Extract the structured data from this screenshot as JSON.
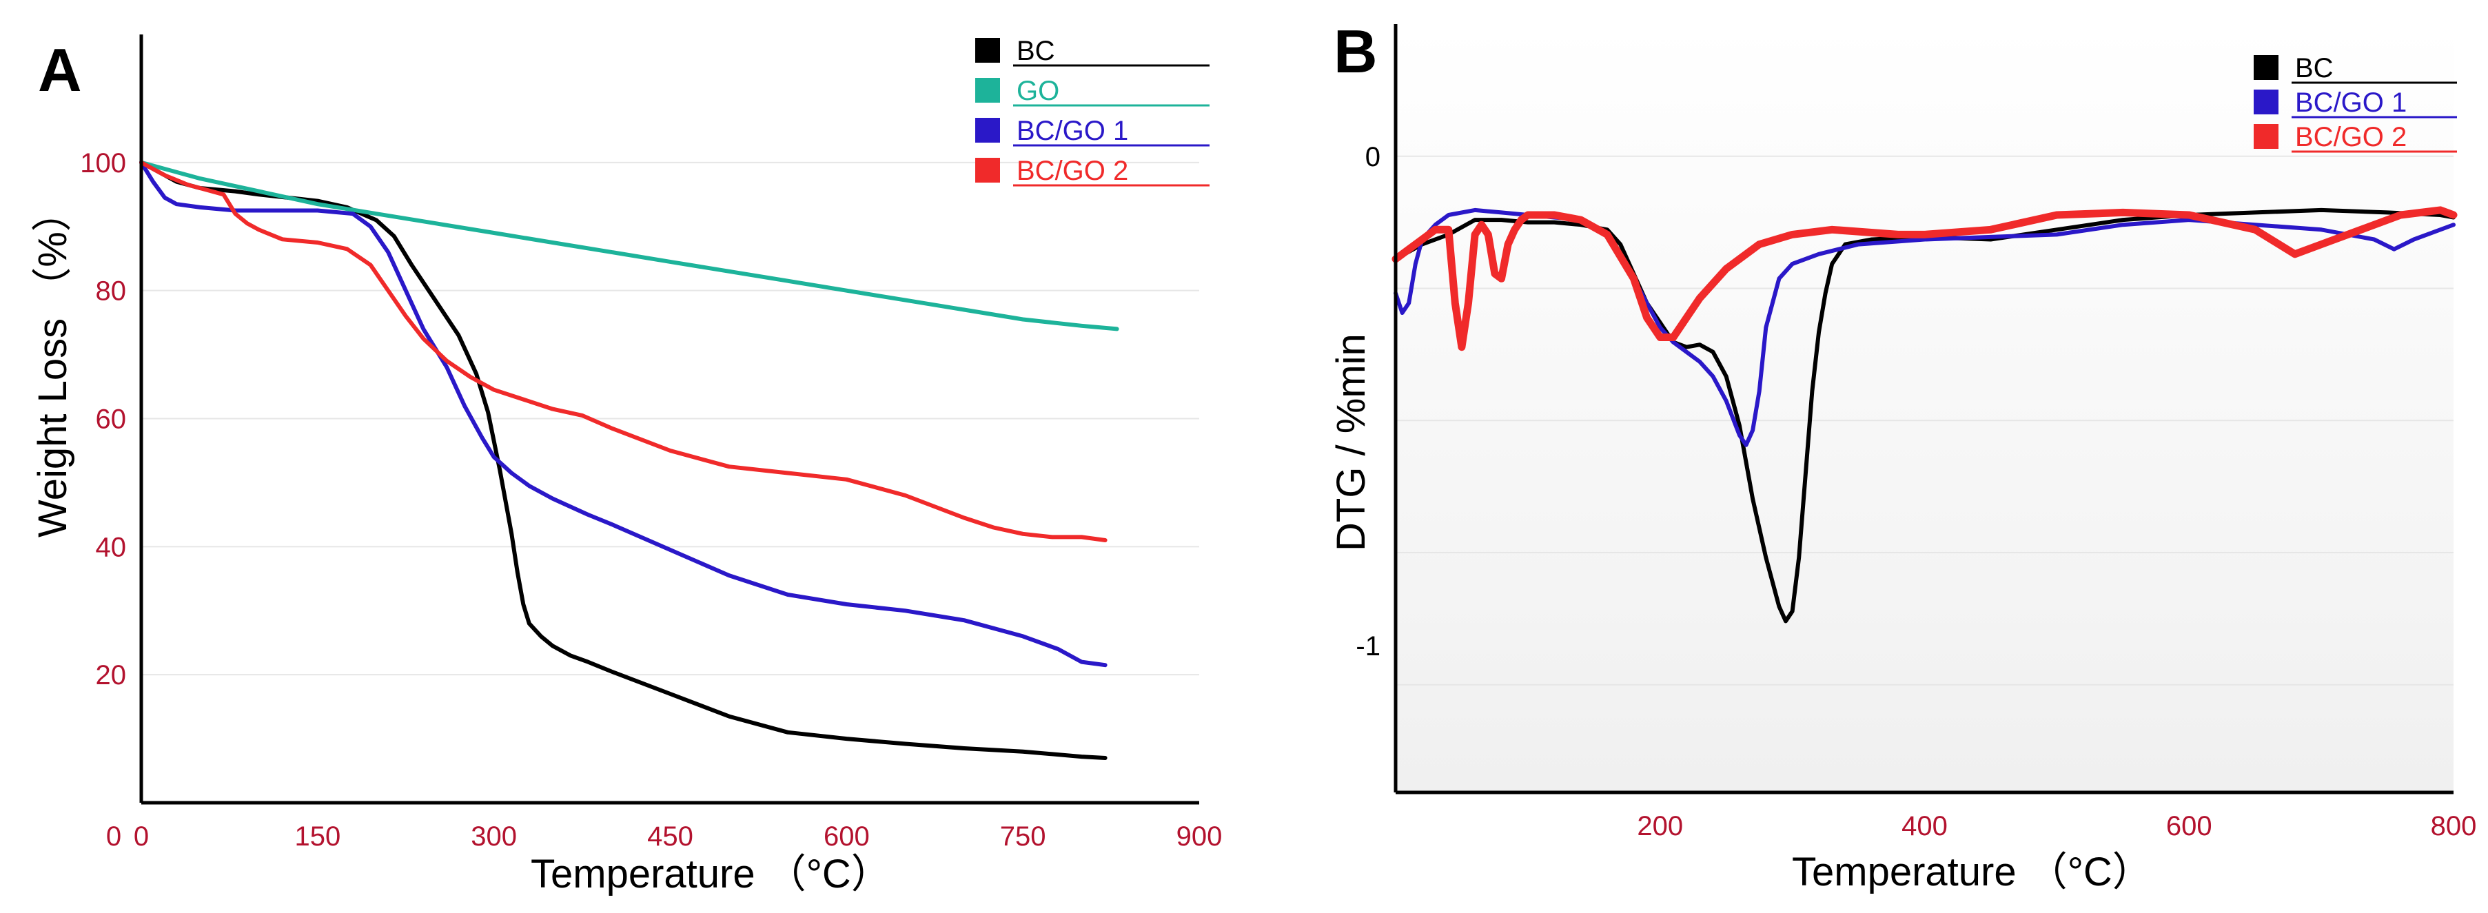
{
  "chart_data": [
    {
      "panel": "A",
      "type": "line",
      "xlabel": "Temperature （°C）",
      "ylabel": "Weight Loss （%）",
      "xlim": [
        0,
        900
      ],
      "ylim": [
        0,
        120
      ],
      "xticks": [
        0,
        150,
        300,
        450,
        600,
        750,
        900
      ],
      "yticks": [
        20,
        40,
        60,
        80,
        100
      ],
      "grid": true,
      "legend_position": "top-right",
      "series": [
        {
          "name": "BC",
          "color": "#000000",
          "x": [
            0,
            10,
            20,
            30,
            50,
            80,
            100,
            125,
            150,
            175,
            200,
            215,
            230,
            250,
            270,
            285,
            295,
            305,
            315,
            320,
            325,
            330,
            340,
            350,
            365,
            380,
            400,
            450,
            500,
            550,
            600,
            650,
            700,
            750,
            800,
            820
          ],
          "y": [
            100,
            99,
            98,
            97,
            96,
            95.5,
            95,
            94.5,
            94,
            93,
            91,
            88.5,
            84,
            78.5,
            73,
            67,
            61,
            52,
            42,
            36,
            31,
            28,
            26,
            24.5,
            23,
            22,
            20.5,
            17,
            13.5,
            11,
            10,
            9.2,
            8.5,
            8,
            7.2,
            7
          ]
        },
        {
          "name": "GO",
          "color": "#1db39a",
          "x": [
            0,
            20,
            50,
            100,
            150,
            200,
            250,
            300,
            350,
            400,
            450,
            500,
            550,
            600,
            650,
            700,
            750,
            800,
            830
          ],
          "y": [
            100,
            99,
            97.5,
            95.5,
            93.5,
            92,
            90.5,
            89,
            87.5,
            86,
            84.5,
            83,
            81.5,
            80,
            78.5,
            77,
            75.5,
            74.5,
            74
          ]
        },
        {
          "name": "BC/GO 1",
          "color": "#2a18c8",
          "x": [
            0,
            10,
            20,
            30,
            50,
            80,
            100,
            150,
            180,
            195,
            210,
            225,
            240,
            260,
            275,
            290,
            300,
            315,
            330,
            350,
            380,
            400,
            450,
            500,
            550,
            600,
            650,
            700,
            750,
            780,
            800,
            820
          ],
          "y": [
            100,
            97,
            94.5,
            93.5,
            93,
            92.5,
            92.5,
            92.5,
            92,
            90,
            86,
            80,
            74,
            68,
            62,
            57,
            54,
            51.5,
            49.5,
            47.5,
            45,
            43.5,
            39.5,
            35.5,
            32.5,
            31,
            30,
            28.5,
            26,
            24,
            22,
            21.5
          ]
        },
        {
          "name": "BC/GO 2",
          "color": "#f02a2a",
          "x": [
            0,
            10,
            20,
            40,
            60,
            70,
            80,
            90,
            100,
            120,
            150,
            175,
            195,
            210,
            225,
            240,
            260,
            280,
            300,
            325,
            350,
            375,
            400,
            450,
            500,
            550,
            600,
            650,
            700,
            725,
            750,
            775,
            800,
            820
          ],
          "y": [
            100,
            99,
            98,
            96.5,
            95.5,
            95,
            92,
            90.5,
            89.5,
            88,
            87.5,
            86.5,
            84,
            80,
            76,
            72.5,
            69,
            66.5,
            64.5,
            63,
            61.5,
            60.5,
            58.5,
            55,
            52.5,
            51.5,
            50.5,
            48,
            44.5,
            43,
            42,
            41.5,
            41.5,
            41
          ]
        }
      ]
    },
    {
      "panel": "B",
      "type": "line",
      "xlabel": "Temperature （°C）",
      "ylabel": "DTG / %min",
      "xlim": [
        0,
        800
      ],
      "ylim": [
        -1.3,
        0.27
      ],
      "xticks": [
        200,
        400,
        600,
        800
      ],
      "yticks": [
        0,
        -1
      ],
      "grid": true,
      "legend_position": "top-right",
      "series": [
        {
          "name": "BC",
          "color": "#000000",
          "x": [
            0,
            20,
            40,
            60,
            80,
            100,
            120,
            140,
            160,
            170,
            180,
            190,
            200,
            210,
            220,
            230,
            240,
            250,
            260,
            270,
            280,
            290,
            295,
            300,
            305,
            310,
            315,
            320,
            325,
            330,
            340,
            360,
            400,
            450,
            500,
            550,
            600,
            650,
            700,
            750,
            790,
            800
          ],
          "y": [
            -0.21,
            -0.18,
            -0.16,
            -0.13,
            -0.13,
            -0.135,
            -0.135,
            -0.14,
            -0.15,
            -0.18,
            -0.24,
            -0.3,
            -0.34,
            -0.38,
            -0.39,
            -0.385,
            -0.4,
            -0.45,
            -0.55,
            -0.7,
            -0.82,
            -0.92,
            -0.95,
            -0.93,
            -0.82,
            -0.65,
            -0.48,
            -0.36,
            -0.28,
            -0.22,
            -0.18,
            -0.17,
            -0.165,
            -0.17,
            -0.15,
            -0.13,
            -0.12,
            -0.115,
            -0.11,
            -0.115,
            -0.12,
            -0.125
          ]
        },
        {
          "name": "BC/GO 1",
          "color": "#2a18c8",
          "x": [
            0,
            5,
            10,
            15,
            20,
            30,
            40,
            60,
            80,
            100,
            120,
            140,
            160,
            170,
            180,
            190,
            200,
            210,
            220,
            230,
            240,
            250,
            260,
            265,
            270,
            275,
            280,
            290,
            300,
            320,
            350,
            400,
            450,
            500,
            550,
            600,
            650,
            700,
            740,
            755,
            770,
            790,
            800
          ],
          "y": [
            -0.28,
            -0.32,
            -0.3,
            -0.22,
            -0.17,
            -0.14,
            -0.12,
            -0.11,
            -0.115,
            -0.12,
            -0.125,
            -0.13,
            -0.16,
            -0.2,
            -0.25,
            -0.3,
            -0.35,
            -0.38,
            -0.4,
            -0.42,
            -0.45,
            -0.5,
            -0.57,
            -0.59,
            -0.56,
            -0.48,
            -0.35,
            -0.25,
            -0.22,
            -0.2,
            -0.18,
            -0.17,
            -0.165,
            -0.16,
            -0.14,
            -0.13,
            -0.14,
            -0.15,
            -0.17,
            -0.19,
            -0.17,
            -0.15,
            -0.14
          ]
        },
        {
          "name": "BC/GO 2",
          "color": "#f02a2a",
          "x": [
            0,
            10,
            20,
            30,
            40,
            45,
            50,
            55,
            60,
            65,
            70,
            75,
            80,
            85,
            90,
            95,
            100,
            120,
            140,
            160,
            180,
            190,
            200,
            210,
            220,
            230,
            250,
            275,
            300,
            330,
            380,
            400,
            450,
            500,
            550,
            600,
            650,
            680,
            700,
            730,
            760,
            790,
            800
          ],
          "y": [
            -0.21,
            -0.19,
            -0.17,
            -0.15,
            -0.15,
            -0.3,
            -0.39,
            -0.3,
            -0.16,
            -0.14,
            -0.16,
            -0.24,
            -0.25,
            -0.18,
            -0.15,
            -0.13,
            -0.12,
            -0.12,
            -0.13,
            -0.16,
            -0.25,
            -0.33,
            -0.37,
            -0.37,
            -0.33,
            -0.29,
            -0.23,
            -0.18,
            -0.16,
            -0.15,
            -0.16,
            -0.16,
            -0.15,
            -0.12,
            -0.115,
            -0.12,
            -0.15,
            -0.2,
            -0.18,
            -0.15,
            -0.12,
            -0.11,
            -0.12
          ]
        }
      ]
    }
  ]
}
